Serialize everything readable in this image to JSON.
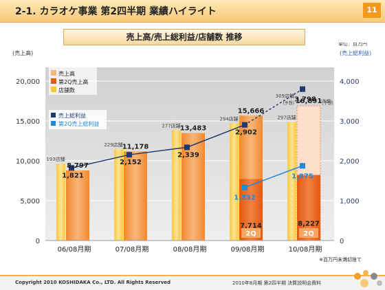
{
  "header": {
    "title": "2-1. カラオケ事業 第2四半期 業績ハイライト",
    "page_number": "11"
  },
  "subtitle": "売上高/売上総利益/店舗数 推移",
  "unit_note": "単位：百万円",
  "rounding_note": "※百万円未満切捨て",
  "footer": {
    "copyright": "Copyright 2010 KOSHIDAKA Co., LTD. All Rights Reserved",
    "doc": "2010年8月期 第2四半期 決算説明会資料"
  },
  "colors": {
    "sales": "#f5a35a",
    "q2sales": "#ee6a1e",
    "stores": "#fbd35c",
    "gross": "#1f3a6e",
    "q2gross": "#1f8ad6",
    "header": "#f8c976",
    "page_badge": "#f39a1e"
  },
  "chart_data": {
    "type": "bar",
    "categories": [
      "06/08月期",
      "07/08月期",
      "08/08月期",
      "09/08月期",
      "10/08月期"
    ],
    "ylabel": "(売上高)",
    "y2label": "(売上総利益)",
    "ylim": [
      0,
      20000
    ],
    "y2lim": [
      0,
      4000
    ],
    "yticks": [
      "0",
      "5,000",
      "10,000",
      "15,000",
      "20,000"
    ],
    "y2ticks": [
      "0",
      "1,000",
      "2,000",
      "3,000",
      "4,000"
    ],
    "series": [
      {
        "name": "売上高",
        "values": [
          8797,
          11178,
          13483,
          15666,
          16891
        ],
        "labels": [
          "8,797",
          "11,178",
          "13,483",
          "15,666",
          "16,891"
        ]
      },
      {
        "name": "第2Q売上高",
        "values": [
          null,
          null,
          null,
          7714,
          8227
        ],
        "labels": [
          "",
          "",
          "",
          "7,714",
          "8,227"
        ]
      },
      {
        "name": "店舗数",
        "stores": [
          193,
          229,
          277,
          294,
          297
        ],
        "labels": [
          "193店舗",
          "229店舗",
          "277店舗",
          "294店舗",
          "297店舗"
        ]
      },
      {
        "name": "売上総利益",
        "values": [
          1821,
          2152,
          2339,
          2902,
          3798
        ],
        "labels": [
          "1,821",
          "2,152",
          "2,339",
          "2,902",
          "3,798"
        ]
      },
      {
        "name": "第2Q売上総利益",
        "values": [
          null,
          null,
          null,
          1332,
          1875
        ],
        "labels": [
          "",
          "",
          "",
          "1,332",
          "1,875"
        ]
      }
    ],
    "forecast": {
      "label": "(予想)",
      "stores_label": "309店舗",
      "stores_value": 309
    },
    "q2_badge": "2Q",
    "grid": true,
    "legend_position": "top-left"
  }
}
